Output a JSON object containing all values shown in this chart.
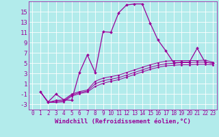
{
  "xlabel": "Windchill (Refroidissement éolien,°C)",
  "bg_color": "#b2ebeb",
  "grid_color": "#ffffff",
  "line_color": "#990099",
  "xlim": [
    -0.5,
    23.5
  ],
  "ylim": [
    -4,
    17
  ],
  "yticks": [
    -3,
    -1,
    1,
    3,
    5,
    7,
    9,
    11,
    13,
    15
  ],
  "xticks": [
    0,
    1,
    2,
    3,
    4,
    5,
    6,
    7,
    8,
    9,
    10,
    11,
    12,
    13,
    14,
    15,
    16,
    17,
    18,
    19,
    20,
    21,
    22,
    23
  ],
  "line1_x": [
    1,
    2,
    3,
    4,
    5,
    6,
    7,
    8,
    9,
    10,
    11,
    12,
    13,
    14,
    15,
    16,
    17,
    18,
    19,
    20,
    21,
    22,
    23
  ],
  "line1_y": [
    -0.5,
    -2.5,
    -1.0,
    -2.1,
    -2.2,
    3.2,
    6.6,
    3.2,
    11.1,
    11.0,
    14.8,
    16.3,
    16.5,
    16.5,
    12.8,
    9.5,
    7.4,
    5.1,
    5.2,
    5.2,
    7.9,
    5.2,
    5.0
  ],
  "line2_x": [
    1,
    2,
    3,
    4,
    5,
    6,
    7,
    8,
    9,
    10,
    11,
    12,
    13,
    14,
    15,
    16,
    17,
    18,
    19,
    20,
    21,
    22,
    23
  ],
  "line2_y": [
    -0.5,
    -2.6,
    -2.2,
    -2.1,
    -1.0,
    -0.5,
    -0.2,
    1.5,
    2.1,
    2.4,
    2.7,
    3.2,
    3.7,
    4.2,
    4.7,
    5.1,
    5.4,
    5.5,
    5.5,
    5.5,
    5.5,
    5.6,
    5.2
  ],
  "line3_x": [
    1,
    2,
    3,
    4,
    5,
    6,
    7,
    8,
    9,
    10,
    11,
    12,
    13,
    14,
    15,
    16,
    17,
    18,
    19,
    20,
    21,
    22,
    23
  ],
  "line3_y": [
    -0.5,
    -2.6,
    -2.4,
    -2.3,
    -1.2,
    -0.7,
    -0.4,
    1.0,
    1.6,
    1.9,
    2.2,
    2.7,
    3.2,
    3.7,
    4.2,
    4.6,
    4.9,
    5.0,
    5.1,
    5.1,
    5.2,
    5.2,
    5.0
  ],
  "line4_x": [
    1,
    2,
    3,
    4,
    5,
    6,
    7,
    8,
    9,
    10,
    11,
    12,
    13,
    14,
    15,
    16,
    17,
    18,
    19,
    20,
    21,
    22,
    23
  ],
  "line4_y": [
    -0.5,
    -2.6,
    -2.6,
    -2.5,
    -1.4,
    -0.9,
    -0.6,
    0.5,
    1.1,
    1.5,
    1.8,
    2.3,
    2.8,
    3.3,
    3.8,
    4.2,
    4.5,
    4.6,
    4.7,
    4.7,
    4.8,
    4.8,
    4.7
  ],
  "font_size_xlabel": 6.5,
  "font_size_yticks": 6.5,
  "font_size_xticks": 5.5
}
